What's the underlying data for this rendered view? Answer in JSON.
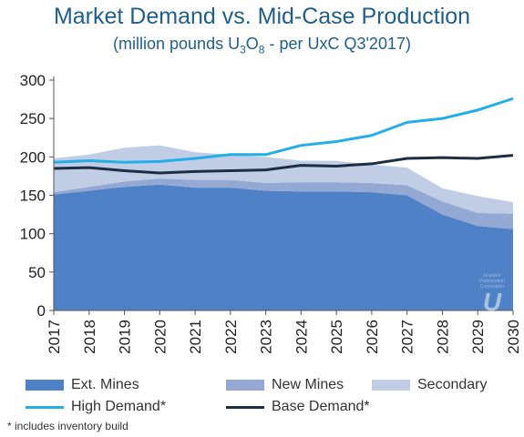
{
  "chart_data": {
    "type": "area",
    "title": "Market Demand vs. Mid-Case Production",
    "subtitle": {
      "prefix": "(million pounds U",
      "sub1": "3",
      "mid": "O",
      "sub2": "8",
      "suffix": " - per UxC Q3'2017)"
    },
    "x": [
      "2017",
      "2018",
      "2019",
      "2020",
      "2021",
      "2022",
      "2023",
      "2024",
      "2025",
      "2026",
      "2027",
      "2028",
      "2029",
      "2030"
    ],
    "y_ticks": [
      "0",
      "50",
      "100",
      "150",
      "200",
      "250",
      "300"
    ],
    "ylim": [
      0,
      300
    ],
    "stacked_series": [
      {
        "name": "Ext. Mines",
        "color": "#4f81c7",
        "values": [
          151,
          156,
          161,
          164,
          160,
          160,
          156,
          155,
          155,
          154,
          150,
          125,
          110,
          106
        ]
      },
      {
        "name": "New Mines",
        "color": "#93a9d4",
        "values": [
          3,
          5,
          7,
          8,
          10,
          10,
          10,
          12,
          12,
          12,
          13,
          17,
          17,
          20
        ]
      },
      {
        "name": "Secondary",
        "color": "#c1cde5",
        "values": [
          44,
          42,
          44,
          43,
          36,
          33,
          34,
          28,
          28,
          24,
          23,
          17,
          22,
          15
        ]
      }
    ],
    "line_series": [
      {
        "name": "High Demand*",
        "color": "#22aee6",
        "values": [
          193,
          195,
          193,
          194,
          198,
          203,
          203,
          215,
          220,
          228,
          245,
          250,
          261,
          276
        ]
      },
      {
        "name": "Base Demand*",
        "color": "#1c2d44",
        "values": [
          185,
          186,
          182,
          179,
          181,
          182,
          183,
          189,
          188,
          191,
          198,
          199,
          198,
          202
        ]
      }
    ],
    "legend_position": "bottom",
    "grid": false
  },
  "footnote": "* includes inventory build",
  "logo": {
    "lines": [
      "Uranium",
      "Participation",
      "Corporation"
    ],
    "mark": "U"
  }
}
